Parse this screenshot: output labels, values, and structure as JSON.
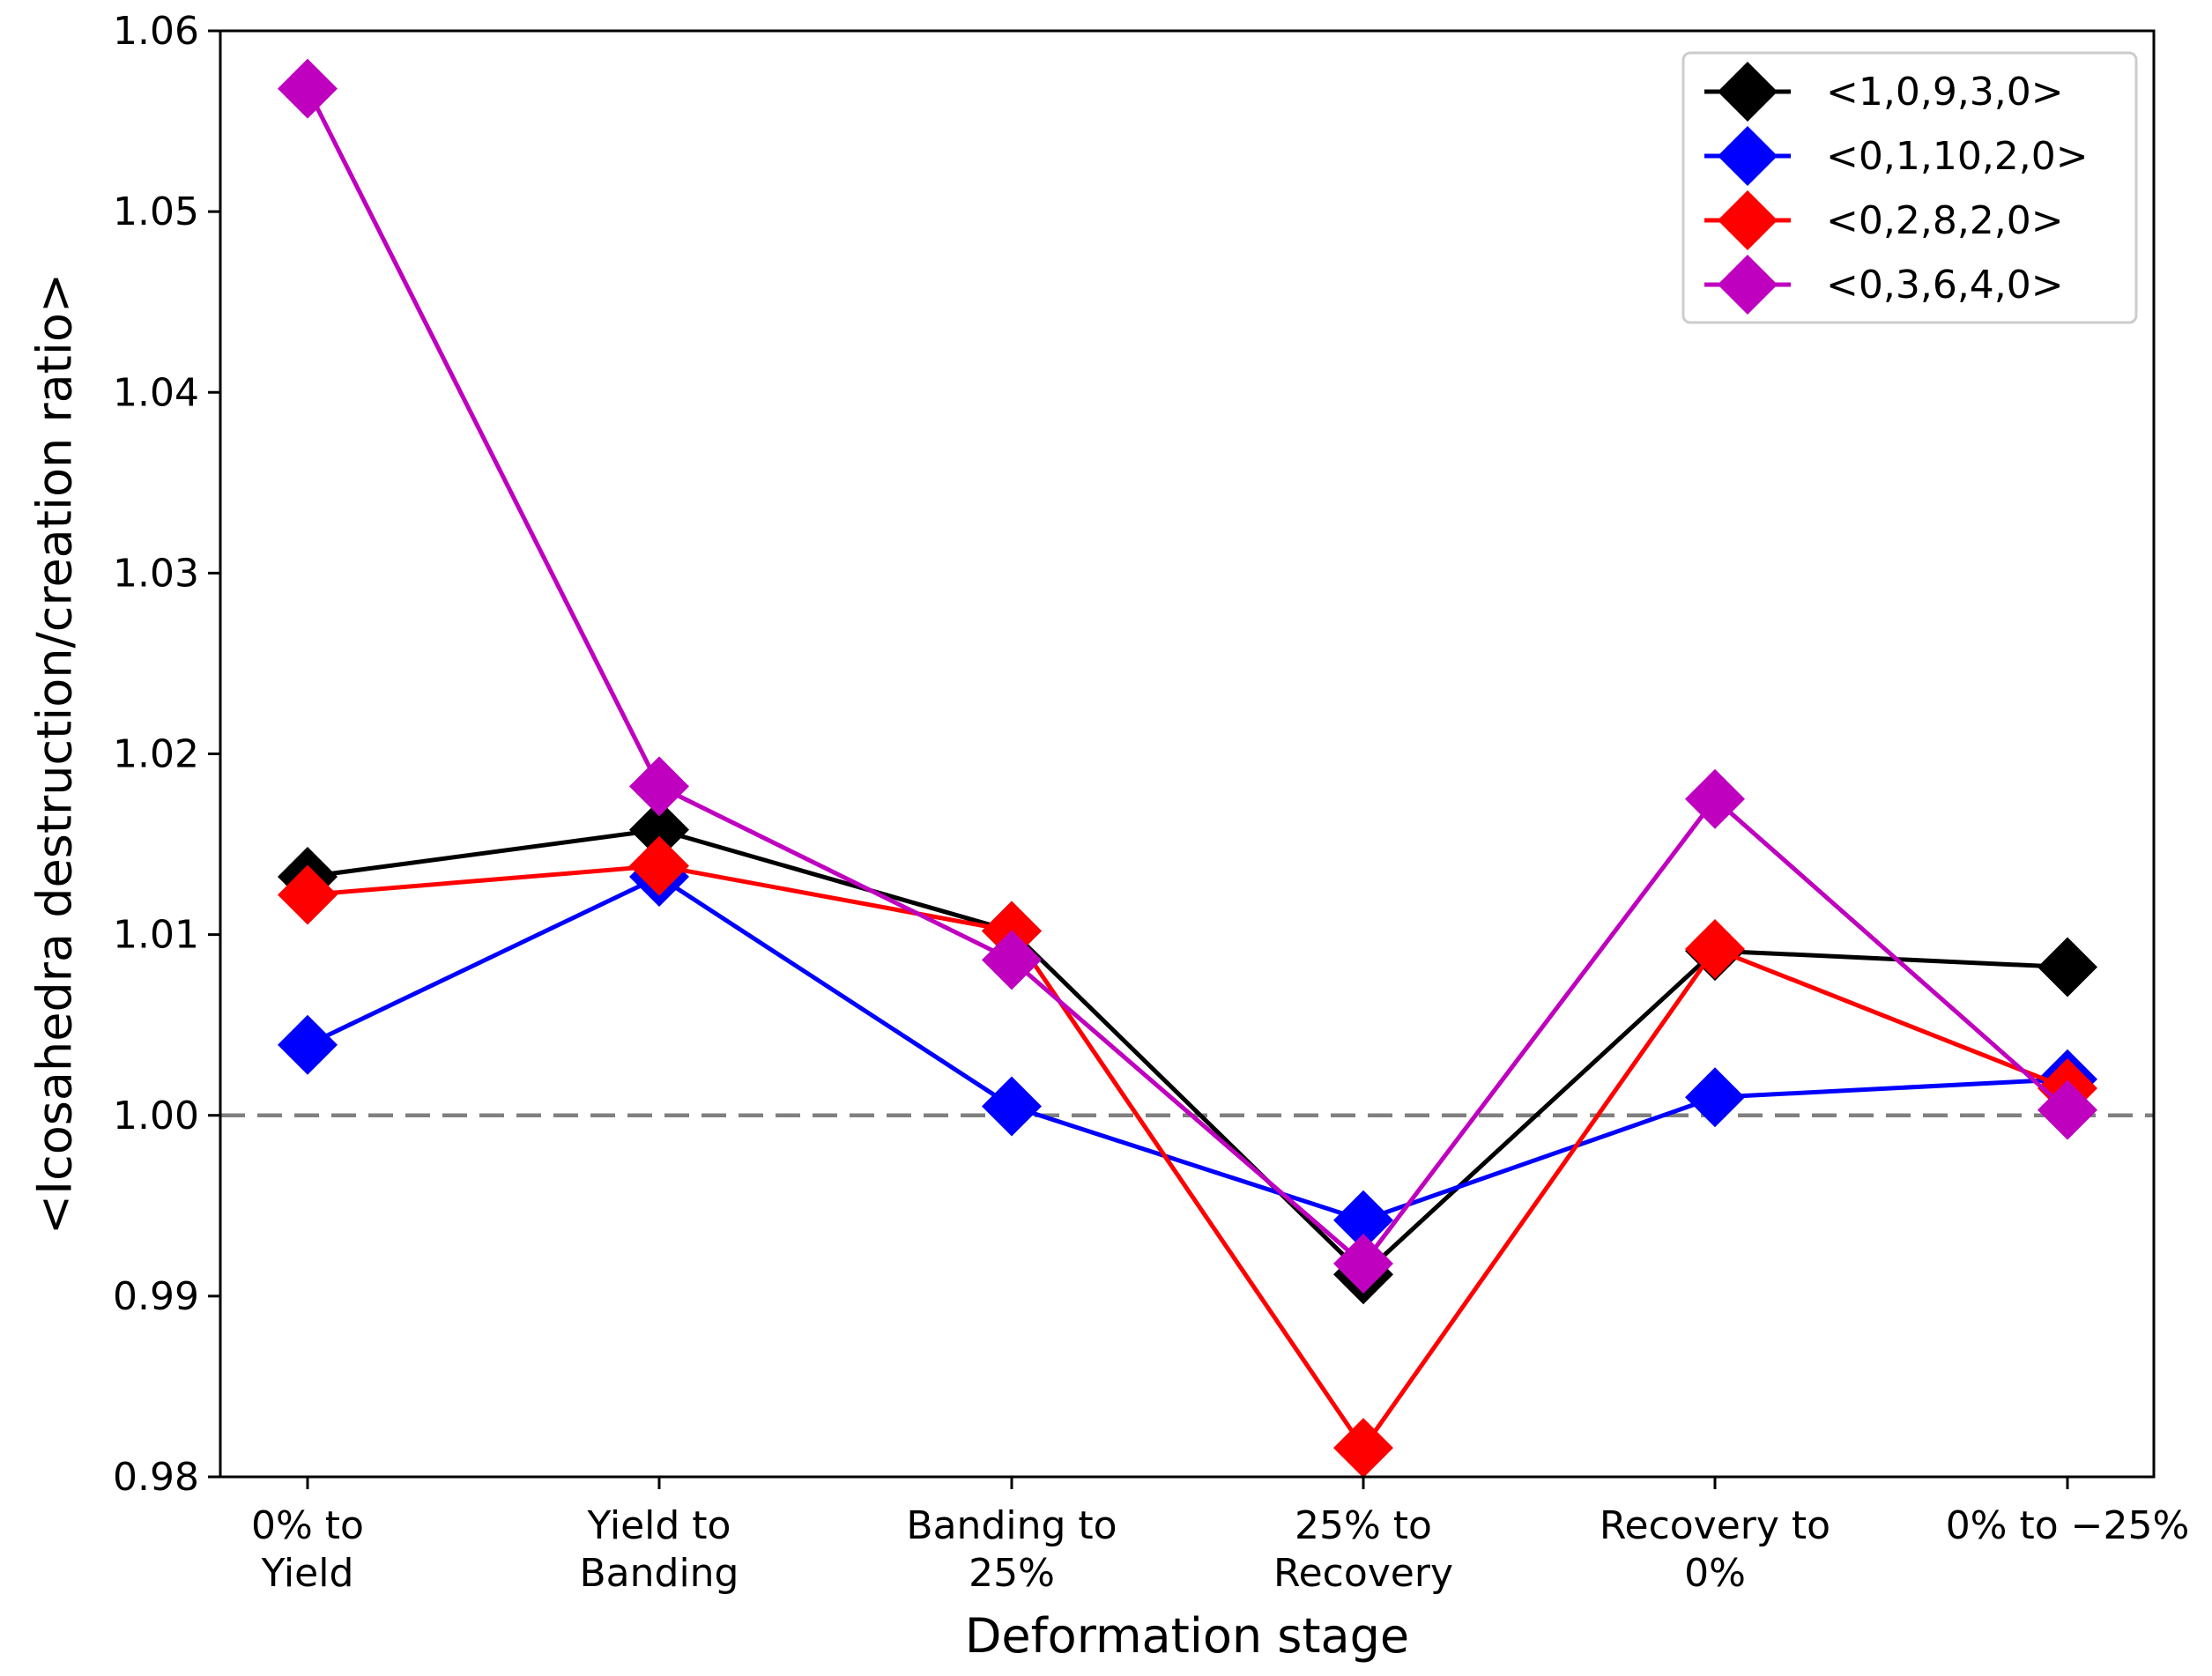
{
  "chart_data": {
    "type": "line",
    "title": "",
    "xlabel": "Deformation stage",
    "ylabel": "<Icosahedra destruction/creation ratio>",
    "categories": [
      [
        "0% to",
        "Yield"
      ],
      [
        "Yield to",
        "Banding"
      ],
      [
        "Banding to",
        "25%"
      ],
      [
        "25% to",
        "Recovery"
      ],
      [
        "Recovery to",
        "0%"
      ],
      [
        "0% to −25%"
      ]
    ],
    "ylim": [
      0.98,
      1.06
    ],
    "yticks": [
      "0.98",
      "0.99",
      "1.00",
      "1.01",
      "1.02",
      "1.03",
      "1.04",
      "1.05",
      "1.06"
    ],
    "reference_line": {
      "y": 1.0,
      "style": "dashed",
      "color": "#808080"
    },
    "legend_position": "top-right",
    "series": [
      {
        "name": "<1,0,9,3,0>",
        "color": "#000000",
        "values": [
          1.0132,
          1.0158,
          1.0102,
          0.9912,
          1.0091,
          1.0082
        ]
      },
      {
        "name": "<0,1,10,2,0>",
        "color": "#0000ff",
        "values": [
          1.0039,
          1.0132,
          1.0005,
          0.9942,
          1.001,
          1.002
        ]
      },
      {
        "name": "<0,2,8,2,0>",
        "color": "#ff0000",
        "values": [
          1.0122,
          1.0138,
          1.0102,
          0.9816,
          1.0092,
          1.0015
        ]
      },
      {
        "name": "<0,3,6,4,0>",
        "color": "#bf00bf",
        "values": [
          1.0568,
          1.0182,
          1.0086,
          0.9918,
          1.0175,
          1.0003
        ]
      }
    ]
  }
}
